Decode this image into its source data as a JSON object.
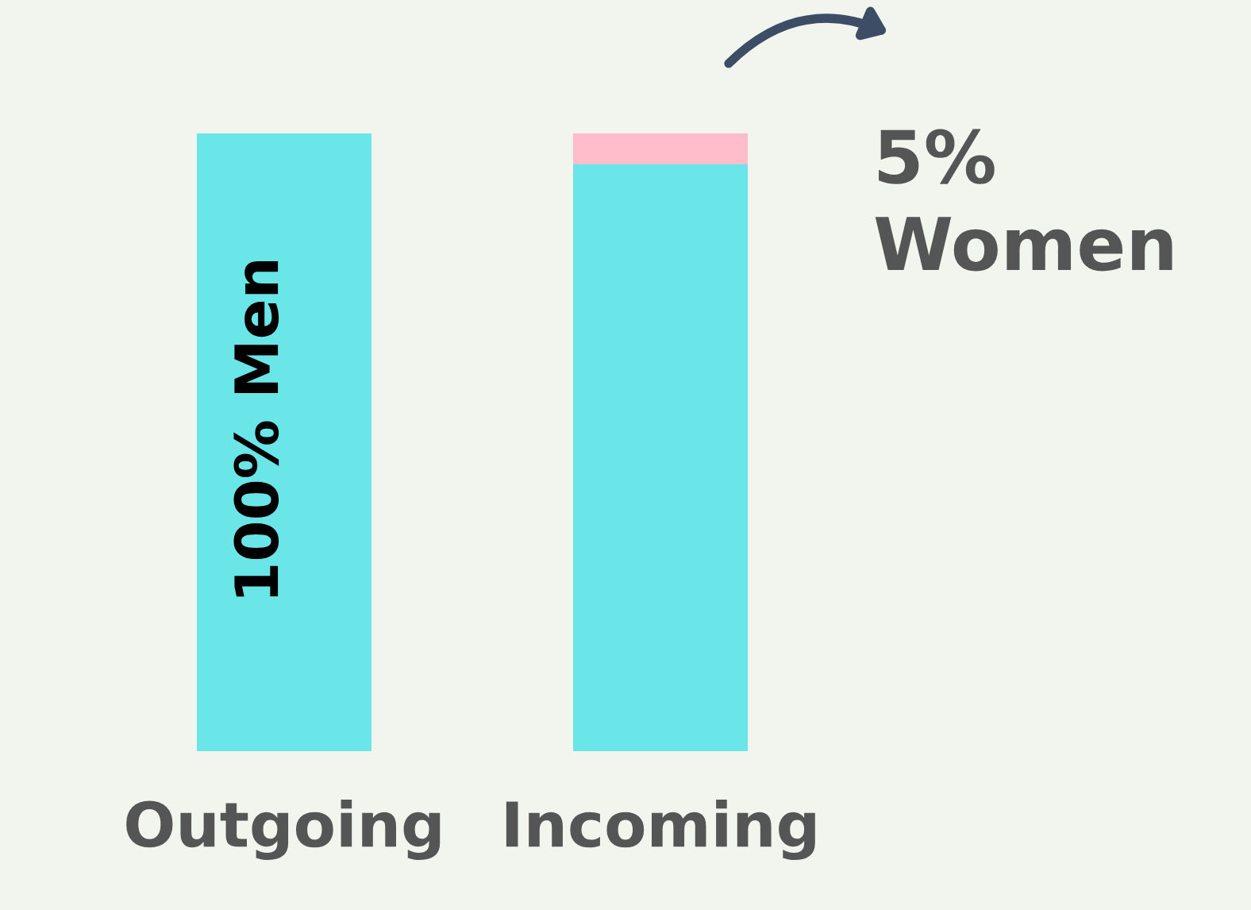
{
  "chart_data": {
    "type": "bar",
    "stacked": true,
    "categories": [
      "Outgoing",
      "Incoming"
    ],
    "series": [
      {
        "color": "#6ae6e9",
        "values": [
          100,
          95
        ],
        "value_labels": [
          "100% Men",
          null
        ]
      },
      {
        "color": "#ffbccb",
        "values": [
          0,
          5
        ]
      }
    ],
    "annotations": [
      "5% Women"
    ],
    "tick_labels": "x",
    "ylim": [
      0,
      100
    ],
    "grid": false,
    "legend": false
  }
}
